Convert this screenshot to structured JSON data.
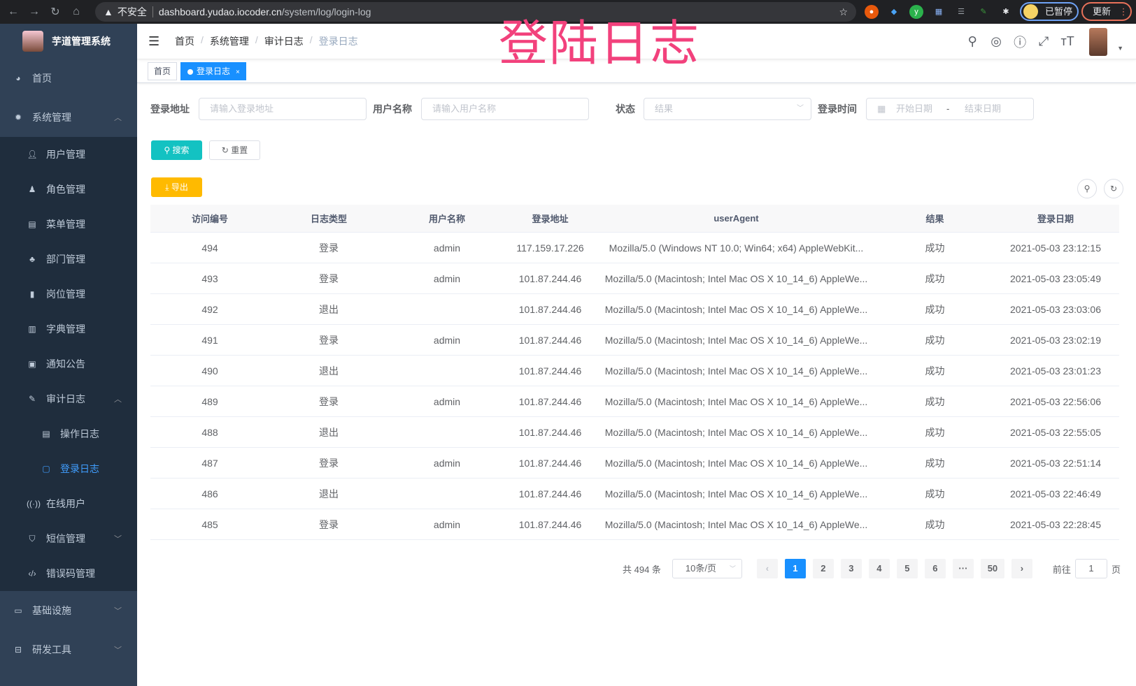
{
  "browser": {
    "security_label": "不安全",
    "url_host": "dashboard.yudao.iocoder.cn",
    "url_path": "/system/log/login-log",
    "paused_label": "已暂停",
    "update_label": "更新"
  },
  "overlay_title": "登陆日志",
  "sidebar": {
    "app_title": "芋道管理系统",
    "items": [
      {
        "label": "首页",
        "icon": "dashboard-icon"
      },
      {
        "label": "系统管理",
        "icon": "gear-icon",
        "expanded": true
      },
      {
        "label": "用户管理",
        "icon": "user-icon"
      },
      {
        "label": "角色管理",
        "icon": "peoples-icon"
      },
      {
        "label": "菜单管理",
        "icon": "tree-table-icon"
      },
      {
        "label": "部门管理",
        "icon": "tree-icon"
      },
      {
        "label": "岗位管理",
        "icon": "post-icon"
      },
      {
        "label": "字典管理",
        "icon": "dict-icon"
      },
      {
        "label": "通知公告",
        "icon": "message-icon"
      },
      {
        "label": "审计日志",
        "icon": "log-icon",
        "expanded": true
      },
      {
        "label": "操作日志",
        "icon": "form-icon"
      },
      {
        "label": "登录日志",
        "icon": "logininfor-icon",
        "active": true
      },
      {
        "label": "在线用户",
        "icon": "online-icon"
      },
      {
        "label": "短信管理",
        "icon": "validCode-icon"
      },
      {
        "label": "错误码管理",
        "icon": "code-icon"
      },
      {
        "label": "基础设施",
        "icon": "monitor-icon"
      },
      {
        "label": "研发工具",
        "icon": "tool-icon"
      }
    ],
    "active_color": "#409eff"
  },
  "navbar": {
    "breadcrumb": [
      "首页",
      "系统管理",
      "审计日志",
      "登录日志"
    ]
  },
  "tags": [
    {
      "label": "首页"
    },
    {
      "label": "登录日志",
      "active": true
    }
  ],
  "search": {
    "ip_label": "登录地址",
    "ip_placeholder": "请输入登录地址",
    "user_label": "用户名称",
    "user_placeholder": "请输入用户名称",
    "status_label": "状态",
    "status_placeholder": "结果",
    "time_label": "登录时间",
    "start_placeholder": "开始日期",
    "range_sep": "-",
    "end_placeholder": "结束日期",
    "search_button": "搜索",
    "reset_button": "重置"
  },
  "toolbar": {
    "export_button": "导出"
  },
  "table": {
    "columns": [
      "访问编号",
      "日志类型",
      "用户名称",
      "登录地址",
      "userAgent",
      "结果",
      "登录日期"
    ],
    "rows": [
      [
        "494",
        "登录",
        "admin",
        "117.159.17.226",
        "Mozilla/5.0 (Windows NT 10.0; Win64; x64) AppleWebKit...",
        "成功",
        "2021-05-03 23:12:15"
      ],
      [
        "493",
        "登录",
        "admin",
        "101.87.244.46",
        "Mozilla/5.0 (Macintosh; Intel Mac OS X 10_14_6) AppleWe...",
        "成功",
        "2021-05-03 23:05:49"
      ],
      [
        "492",
        "退出",
        "",
        "101.87.244.46",
        "Mozilla/5.0 (Macintosh; Intel Mac OS X 10_14_6) AppleWe...",
        "成功",
        "2021-05-03 23:03:06"
      ],
      [
        "491",
        "登录",
        "admin",
        "101.87.244.46",
        "Mozilla/5.0 (Macintosh; Intel Mac OS X 10_14_6) AppleWe...",
        "成功",
        "2021-05-03 23:02:19"
      ],
      [
        "490",
        "退出",
        "",
        "101.87.244.46",
        "Mozilla/5.0 (Macintosh; Intel Mac OS X 10_14_6) AppleWe...",
        "成功",
        "2021-05-03 23:01:23"
      ],
      [
        "489",
        "登录",
        "admin",
        "101.87.244.46",
        "Mozilla/5.0 (Macintosh; Intel Mac OS X 10_14_6) AppleWe...",
        "成功",
        "2021-05-03 22:56:06"
      ],
      [
        "488",
        "退出",
        "",
        "101.87.244.46",
        "Mozilla/5.0 (Macintosh; Intel Mac OS X 10_14_6) AppleWe...",
        "成功",
        "2021-05-03 22:55:05"
      ],
      [
        "487",
        "登录",
        "admin",
        "101.87.244.46",
        "Mozilla/5.0 (Macintosh; Intel Mac OS X 10_14_6) AppleWe...",
        "成功",
        "2021-05-03 22:51:14"
      ],
      [
        "486",
        "退出",
        "",
        "101.87.244.46",
        "Mozilla/5.0 (Macintosh; Intel Mac OS X 10_14_6) AppleWe...",
        "成功",
        "2021-05-03 22:46:49"
      ],
      [
        "485",
        "登录",
        "admin",
        "101.87.244.46",
        "Mozilla/5.0 (Macintosh; Intel Mac OS X 10_14_6) AppleWe...",
        "成功",
        "2021-05-03 22:28:45"
      ]
    ]
  },
  "pagination": {
    "total_text": "共 494 条",
    "page_size": "10条/页",
    "pages": [
      "1",
      "2",
      "3",
      "4",
      "5",
      "6",
      "···",
      "50"
    ],
    "current": "1",
    "goto_prefix": "前往",
    "goto_value": "1",
    "goto_suffix": "页"
  },
  "colors": {
    "primary": "#1890ff",
    "search_btn": "#13c2c2",
    "export_btn": "#ffba00",
    "sidebar_bg": "#304156",
    "submenu_bg": "#1f2d3d",
    "overlay": "#f2417c"
  }
}
